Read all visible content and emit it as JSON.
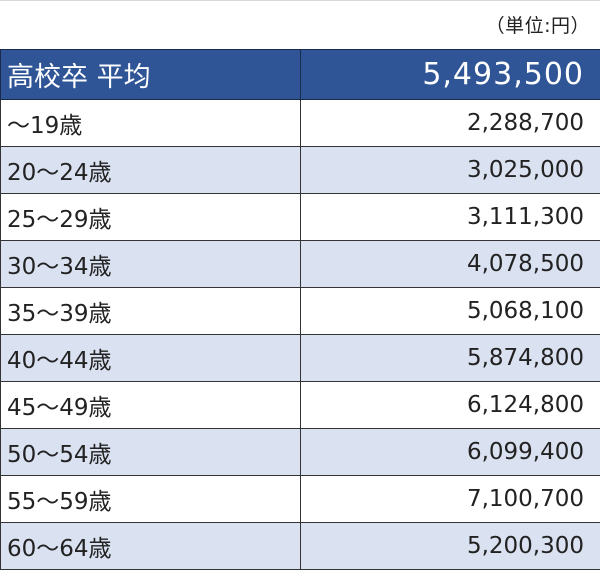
{
  "unit_note": "（単位:円）",
  "header": {
    "label": "高校卒 平均",
    "value": "5,493,500"
  },
  "rows": [
    {
      "label": "～19歳",
      "value": "2,288,700"
    },
    {
      "label": "20～24歳",
      "value": "3,025,000"
    },
    {
      "label": "25～29歳",
      "value": "3,111,300"
    },
    {
      "label": "30～34歳",
      "value": "4,078,500"
    },
    {
      "label": "35～39歳",
      "value": "5,068,100"
    },
    {
      "label": "40～44歳",
      "value": "5,874,800"
    },
    {
      "label": "45～49歳",
      "value": "6,124,800"
    },
    {
      "label": "50～54歳",
      "value": "6,099,400"
    },
    {
      "label": "55～59歳",
      "value": "7,100,700"
    },
    {
      "label": "60～64歳",
      "value": "5,200,300"
    }
  ],
  "colors": {
    "header_bg": "#2f5597",
    "header_text": "#ffffff",
    "stripe_bg": "#dae1f1",
    "border": "#333333"
  }
}
